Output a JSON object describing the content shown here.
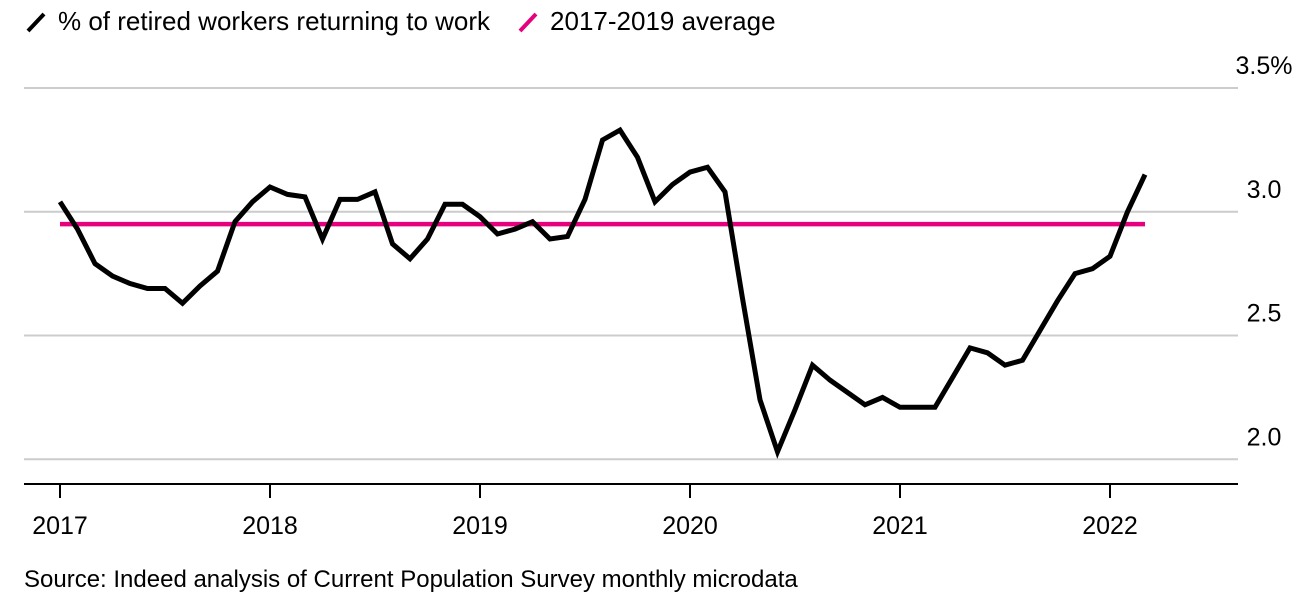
{
  "legend": [
    {
      "label": "% of retired workers returning to work",
      "color": "#000000"
    },
    {
      "label": "2017-2019 average",
      "color": "#e6007e"
    }
  ],
  "source": "Source: Indeed analysis of Current Population Survey monthly microdata",
  "chart_data": {
    "type": "line",
    "title": "",
    "xlabel": "",
    "ylabel": "",
    "x_ticks": [
      "2017",
      "2018",
      "2019",
      "2020",
      "2021",
      "2022"
    ],
    "y_ticks": [
      {
        "value": 2.0,
        "label": "2.0"
      },
      {
        "value": 2.5,
        "label": "2.5"
      },
      {
        "value": 3.0,
        "label": "3.0"
      },
      {
        "value": 3.5,
        "label": "3.5%"
      }
    ],
    "ylim": [
      1.9,
      3.5
    ],
    "xlim": [
      "2017-01",
      "2022-06"
    ],
    "grid": true,
    "y_axis_side": "right",
    "series": [
      {
        "name": "% of retired workers returning to work",
        "color": "#000000",
        "x": [
          "2017-01",
          "2017-02",
          "2017-03",
          "2017-04",
          "2017-05",
          "2017-06",
          "2017-07",
          "2017-08",
          "2017-09",
          "2017-10",
          "2017-11",
          "2017-12",
          "2018-01",
          "2018-02",
          "2018-03",
          "2018-04",
          "2018-05",
          "2018-06",
          "2018-07",
          "2018-08",
          "2018-09",
          "2018-10",
          "2018-11",
          "2018-12",
          "2019-01",
          "2019-02",
          "2019-03",
          "2019-04",
          "2019-05",
          "2019-06",
          "2019-07",
          "2019-08",
          "2019-09",
          "2019-10",
          "2019-11",
          "2019-12",
          "2020-01",
          "2020-02",
          "2020-03",
          "2020-04",
          "2020-05",
          "2020-06",
          "2020-07",
          "2020-08",
          "2020-09",
          "2020-10",
          "2020-11",
          "2020-12",
          "2021-01",
          "2021-02",
          "2021-03",
          "2021-04",
          "2021-05",
          "2021-06",
          "2021-07",
          "2021-08",
          "2021-09",
          "2021-10",
          "2021-11",
          "2021-12",
          "2022-01",
          "2022-02",
          "2022-03"
        ],
        "values": [
          3.04,
          2.93,
          2.79,
          2.74,
          2.71,
          2.69,
          2.69,
          2.63,
          2.7,
          2.76,
          2.96,
          3.04,
          3.1,
          3.07,
          3.06,
          2.89,
          3.05,
          3.05,
          3.08,
          2.87,
          2.81,
          2.89,
          3.03,
          3.03,
          2.98,
          2.91,
          2.93,
          2.96,
          2.89,
          2.9,
          3.05,
          3.29,
          3.33,
          3.22,
          3.04,
          3.11,
          3.16,
          3.18,
          3.08,
          2.65,
          2.24,
          2.03,
          2.2,
          2.38,
          2.32,
          2.27,
          2.22,
          2.25,
          2.21,
          2.21,
          2.21,
          2.33,
          2.45,
          2.43,
          2.38,
          2.4,
          2.52,
          2.64,
          2.75,
          2.77,
          2.82,
          3.0,
          3.15
        ]
      },
      {
        "name": "2017-2019 average",
        "color": "#e6007e",
        "x": [
          "2017-01",
          "2022-03"
        ],
        "values": [
          2.95,
          2.95
        ]
      }
    ]
  }
}
